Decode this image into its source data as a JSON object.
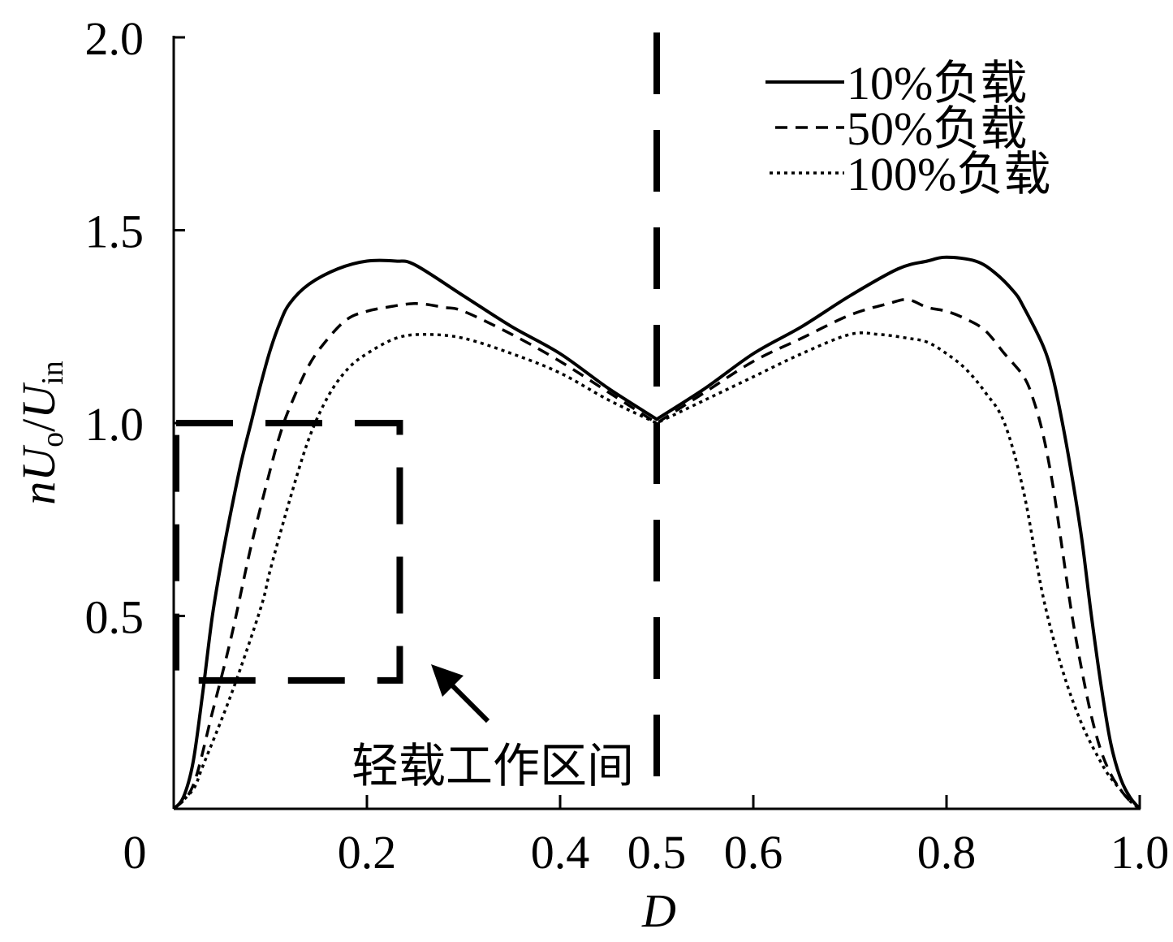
{
  "chart_data": {
    "type": "line",
    "xlabel": "D",
    "ylabel_parts": [
      "n",
      "U",
      "o",
      "/",
      "U",
      "in"
    ],
    "xlim": [
      0,
      1.0
    ],
    "ylim": [
      0,
      2.0
    ],
    "x_ticks": [
      {
        "value": 0,
        "label": "0"
      },
      {
        "value": 0.2,
        "label": "0.2"
      },
      {
        "value": 0.4,
        "label": "0.4"
      },
      {
        "value": 0.5,
        "label": "0.5"
      },
      {
        "value": 0.6,
        "label": "0.6"
      },
      {
        "value": 0.8,
        "label": "0.8"
      },
      {
        "value": 1.0,
        "label": "1.0"
      }
    ],
    "x_tick_marks": [
      0.2,
      0.4,
      0.6,
      0.8,
      1.0
    ],
    "y_ticks": [
      {
        "value": 0.5,
        "label": "0.5"
      },
      {
        "value": 1.0,
        "label": "1.0"
      },
      {
        "value": 1.5,
        "label": "1.5"
      },
      {
        "value": 2.0,
        "label": "2.0"
      }
    ],
    "grid": false,
    "legend_position": "top-right",
    "line_color": "#000000",
    "series": [
      {
        "name": "10%负载",
        "x": [
          0,
          0.01,
          0.02,
          0.03,
          0.04,
          0.05,
          0.06,
          0.07,
          0.08,
          0.09,
          0.1,
          0.11,
          0.12,
          0.14,
          0.17,
          0.2,
          0.23,
          0.25,
          0.3,
          0.35,
          0.4,
          0.45,
          0.5,
          0.55,
          0.6,
          0.65,
          0.7,
          0.75,
          0.78,
          0.8,
          0.83,
          0.85,
          0.87,
          0.88,
          0.9,
          0.91,
          0.92,
          0.93,
          0.94,
          0.95,
          0.96,
          0.97,
          0.98,
          0.99,
          1.0
        ],
        "y": [
          0,
          0.03,
          0.12,
          0.3,
          0.5,
          0.65,
          0.78,
          0.9,
          1.0,
          1.1,
          1.19,
          1.26,
          1.31,
          1.36,
          1.4,
          1.42,
          1.42,
          1.41,
          1.33,
          1.25,
          1.18,
          1.09,
          1.01,
          1.09,
          1.18,
          1.25,
          1.33,
          1.4,
          1.42,
          1.43,
          1.42,
          1.39,
          1.34,
          1.3,
          1.2,
          1.12,
          1.0,
          0.86,
          0.7,
          0.5,
          0.32,
          0.17,
          0.08,
          0.03,
          0
        ]
      },
      {
        "name": "50%负载",
        "x": [
          0,
          0.02,
          0.04,
          0.06,
          0.08,
          0.1,
          0.11,
          0.12,
          0.14,
          0.16,
          0.18,
          0.2,
          0.22,
          0.25,
          0.28,
          0.3,
          0.35,
          0.4,
          0.45,
          0.5,
          0.55,
          0.6,
          0.65,
          0.7,
          0.74,
          0.76,
          0.78,
          0.8,
          0.82,
          0.84,
          0.86,
          0.88,
          0.89,
          0.9,
          0.91,
          0.92,
          0.93,
          0.94,
          0.95,
          0.96,
          0.97,
          0.98,
          0.99,
          1.0
        ],
        "y": [
          0,
          0.06,
          0.25,
          0.45,
          0.68,
          0.88,
          0.97,
          1.04,
          1.15,
          1.22,
          1.27,
          1.29,
          1.3,
          1.31,
          1.3,
          1.29,
          1.23,
          1.16,
          1.08,
          1.0,
          1.08,
          1.16,
          1.22,
          1.28,
          1.31,
          1.32,
          1.3,
          1.29,
          1.27,
          1.24,
          1.18,
          1.12,
          1.06,
          0.97,
          0.84,
          0.67,
          0.5,
          0.36,
          0.24,
          0.15,
          0.09,
          0.05,
          0.02,
          0
        ]
      },
      {
        "name": "100%负载",
        "x": [
          0,
          0.02,
          0.03,
          0.06,
          0.09,
          0.1,
          0.12,
          0.14,
          0.16,
          0.18,
          0.2,
          0.23,
          0.26,
          0.3,
          0.35,
          0.4,
          0.45,
          0.5,
          0.55,
          0.6,
          0.65,
          0.7,
          0.73,
          0.76,
          0.78,
          0.8,
          0.82,
          0.84,
          0.86,
          0.88,
          0.9,
          0.92,
          0.94,
          0.96,
          0.97,
          0.98,
          0.99,
          1.0
        ],
        "y": [
          0,
          0.05,
          0.11,
          0.3,
          0.52,
          0.62,
          0.8,
          0.96,
          1.07,
          1.14,
          1.18,
          1.22,
          1.23,
          1.22,
          1.18,
          1.13,
          1.06,
          1.0,
          1.06,
          1.12,
          1.18,
          1.23,
          1.23,
          1.22,
          1.21,
          1.18,
          1.14,
          1.08,
          1.0,
          0.82,
          0.55,
          0.36,
          0.22,
          0.12,
          0.08,
          0.05,
          0.02,
          0
        ]
      }
    ],
    "reference_line_x": 0.5,
    "highlight_region": {
      "x": [
        0,
        0.234
      ],
      "y": [
        0.333,
        1.0
      ]
    },
    "annotation": "轻载工作区间"
  }
}
